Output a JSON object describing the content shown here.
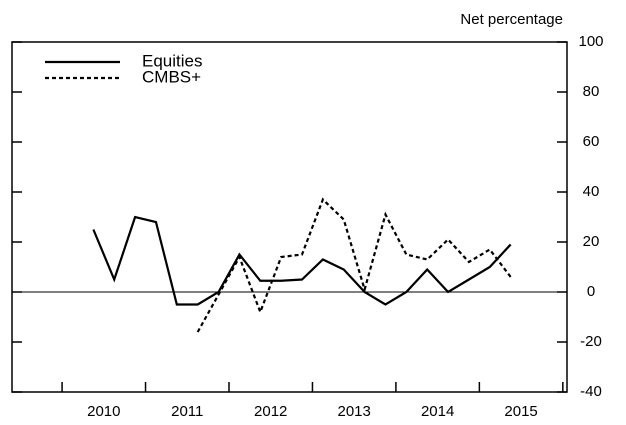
{
  "chart_data": {
    "type": "line",
    "y_label": "Net percentage",
    "x": [
      2010.375,
      2010.625,
      2010.875,
      2011.125,
      2011.375,
      2011.625,
      2011.875,
      2012.125,
      2012.375,
      2012.625,
      2012.875,
      2013.125,
      2013.375,
      2013.625,
      2013.875,
      2014.125,
      2014.375,
      2014.625,
      2014.875,
      2015.125,
      2015.375
    ],
    "series": [
      {
        "name": "Equities",
        "color": "#000000",
        "dash": "solid",
        "values": [
          25,
          5,
          30,
          28,
          -5,
          -5,
          0,
          15,
          4.5,
          4.5,
          5,
          13,
          9,
          0,
          -5,
          0,
          9,
          0,
          5,
          10,
          19
        ]
      },
      {
        "name": "CMBS+",
        "color": "#000000",
        "dash": "dotted",
        "values": [
          null,
          null,
          null,
          null,
          null,
          -16,
          -1,
          14,
          -8,
          14,
          15,
          37,
          29,
          1,
          31,
          15,
          13,
          21,
          12,
          17,
          6
        ]
      }
    ],
    "xlim": [
      2009.4,
      2016.05
    ],
    "xticks": [
      {
        "value": 2010.5,
        "label": "2010"
      },
      {
        "value": 2011.5,
        "label": "2011"
      },
      {
        "value": 2012.5,
        "label": "2012"
      },
      {
        "value": 2013.5,
        "label": "2013"
      },
      {
        "value": 2014.5,
        "label": "2014"
      },
      {
        "value": 2015.5,
        "label": "2015"
      }
    ],
    "xtick_marks": [
      2010,
      2011,
      2012,
      2013,
      2014,
      2015,
      2016
    ],
    "ylim": [
      -40,
      100
    ],
    "yticks": [
      -40,
      -20,
      0,
      20,
      40,
      60,
      80,
      100
    ],
    "legend": "upper left"
  }
}
